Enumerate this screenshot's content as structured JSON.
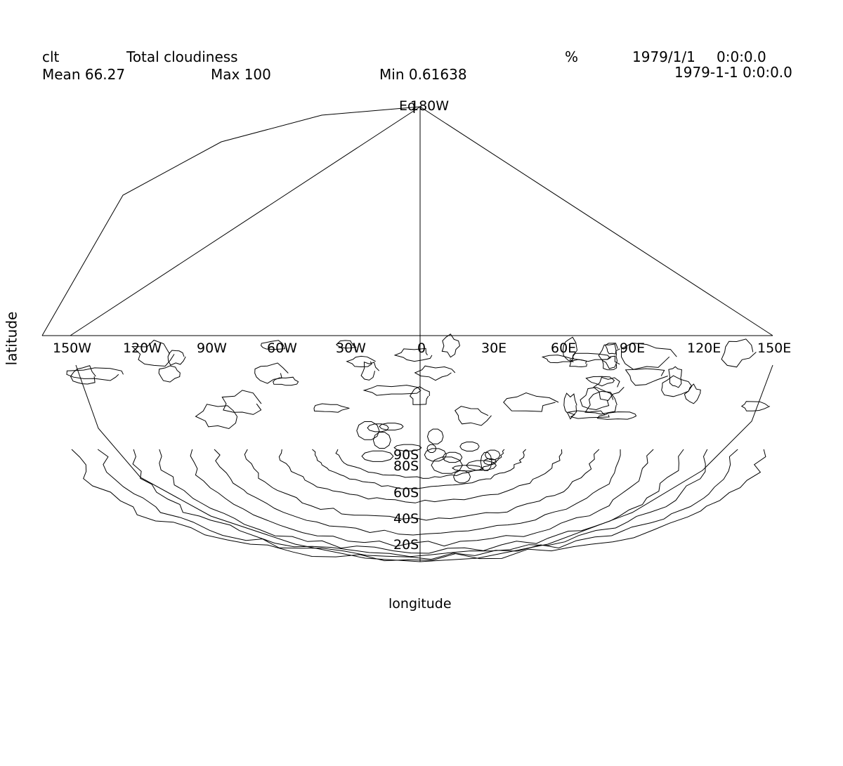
{
  "header": {
    "var_name": "clt",
    "long_name": "Total cloudiness",
    "units": "%",
    "date": "1979/1/1",
    "time": "0:0:0.0",
    "datetime": "1979-1-1 0:0:0.0",
    "mean": "Mean 66.27",
    "max": "Max 100",
    "min": "Min 0.61638"
  },
  "map": {
    "projection": "polar stereographic (south pole)",
    "xlabel": "longitude",
    "ylabel": "latitude",
    "lon_ticks": [
      "150W",
      "120W",
      "90W",
      "60W",
      "30W",
      "0",
      "30E",
      "60E",
      "90E",
      "120E",
      "150E"
    ],
    "lat_ticks": [
      "90S",
      "80S",
      "60S",
      "40S",
      "20S"
    ],
    "top_labels": [
      "Eq",
      "180W"
    ],
    "line_color": "#000000"
  }
}
